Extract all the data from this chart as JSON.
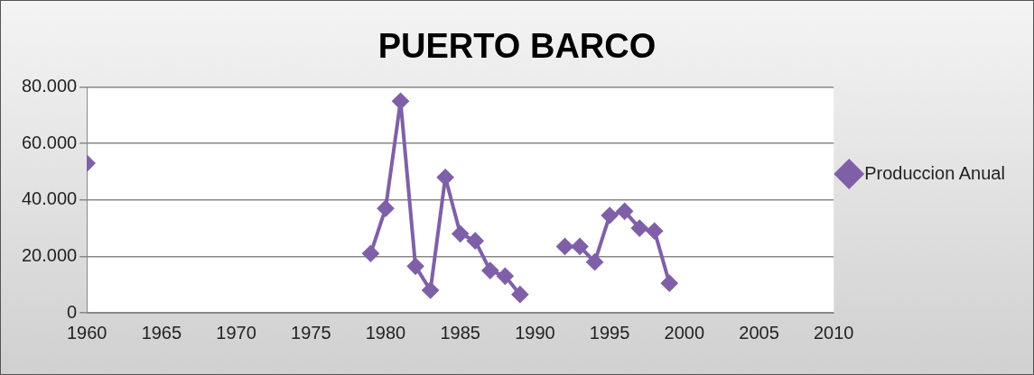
{
  "chart_data": {
    "type": "line",
    "title": "PUERTO BARCO",
    "x": [
      1960,
      1961,
      1979,
      1980,
      1981,
      1982,
      1983,
      1984,
      1985,
      1986,
      1987,
      1988,
      1989,
      1990,
      1992,
      1993,
      1994,
      1995,
      1996,
      1997,
      1998,
      1999
    ],
    "series": [
      {
        "name": "Produccion Anual",
        "color": "#7f60a8",
        "values": [
          53000,
          null,
          21000,
          37000,
          75000,
          16500,
          8000,
          48000,
          28000,
          25500,
          15000,
          13000,
          6500,
          null,
          23500,
          23500,
          18000,
          34500,
          36000,
          30000,
          29000,
          10500
        ]
      }
    ],
    "xlim": [
      1960,
      2010
    ],
    "xticks": [
      1960,
      1965,
      1970,
      1975,
      1980,
      1985,
      1990,
      1995,
      2000,
      2005,
      2010
    ],
    "ylim": [
      0,
      80000
    ],
    "yticks": [
      {
        "value": 0,
        "label": "0"
      },
      {
        "value": 20000,
        "label": "20.000"
      },
      {
        "value": 40000,
        "label": "40.000"
      },
      {
        "value": 60000,
        "label": "60.000"
      },
      {
        "value": 80000,
        "label": "80.000"
      }
    ],
    "grid": "y",
    "legend": "right",
    "marker": "diamond",
    "line_style": "solid"
  }
}
